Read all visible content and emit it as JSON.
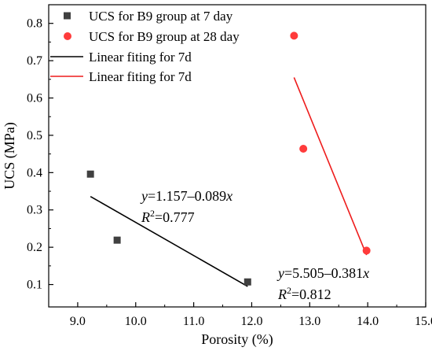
{
  "chart_data": {
    "type": "scatter",
    "xlabel": "Porosity (%)",
    "ylabel": "UCS (MPa)",
    "xlim": [
      8.5,
      15.0
    ],
    "ylim": [
      0.04,
      0.85
    ],
    "xticks": [
      9.0,
      10.0,
      11.0,
      12.0,
      13.0,
      14.0,
      15.0
    ],
    "xtick_labels": [
      "9.0",
      "10.0",
      "11.0",
      "12.0",
      "13.0",
      "14.0",
      "15.0"
    ],
    "yticks": [
      0.1,
      0.2,
      0.3,
      0.4,
      0.5,
      0.6,
      0.7,
      0.8
    ],
    "ytick_labels": [
      "0.1",
      "0.2",
      "0.3",
      "0.4",
      "0.5",
      "0.6",
      "0.7",
      "0.8"
    ],
    "legend_position": "top-left",
    "series": [
      {
        "name": "UCS for B9 group at 7 day",
        "kind": "points",
        "marker": "square",
        "color": "#404040",
        "x": [
          9.22,
          9.68,
          11.93
        ],
        "y": [
          0.396,
          0.219,
          0.107
        ]
      },
      {
        "name": "UCS for B9 group at 28 day",
        "kind": "points",
        "marker": "circle",
        "color": "#ff3b3b",
        "x": [
          12.73,
          12.89,
          13.98
        ],
        "y": [
          0.767,
          0.464,
          0.191
        ]
      },
      {
        "name": "Linear fiting for 7d",
        "kind": "line",
        "color": "#000000",
        "x": [
          9.22,
          11.93
        ],
        "y": [
          0.336,
          0.095
        ]
      },
      {
        "name": "Linear fiting for 7d",
        "kind": "line",
        "color": "#ee1c1c",
        "x": [
          12.73,
          13.98
        ],
        "y": [
          0.655,
          0.179
        ]
      }
    ],
    "annotations": [
      {
        "equation": {
          "lhs": "y",
          "middle": "=1.157–0.089",
          "var": "x"
        },
        "r2": {
          "base": "R",
          "sup": "2",
          "value": "=0.777"
        }
      },
      {
        "equation": {
          "lhs": "y",
          "middle": "=5.505–0.381",
          "var": "x"
        },
        "r2": {
          "base": "R",
          "sup": "2",
          "value": "=0.812"
        }
      }
    ]
  }
}
